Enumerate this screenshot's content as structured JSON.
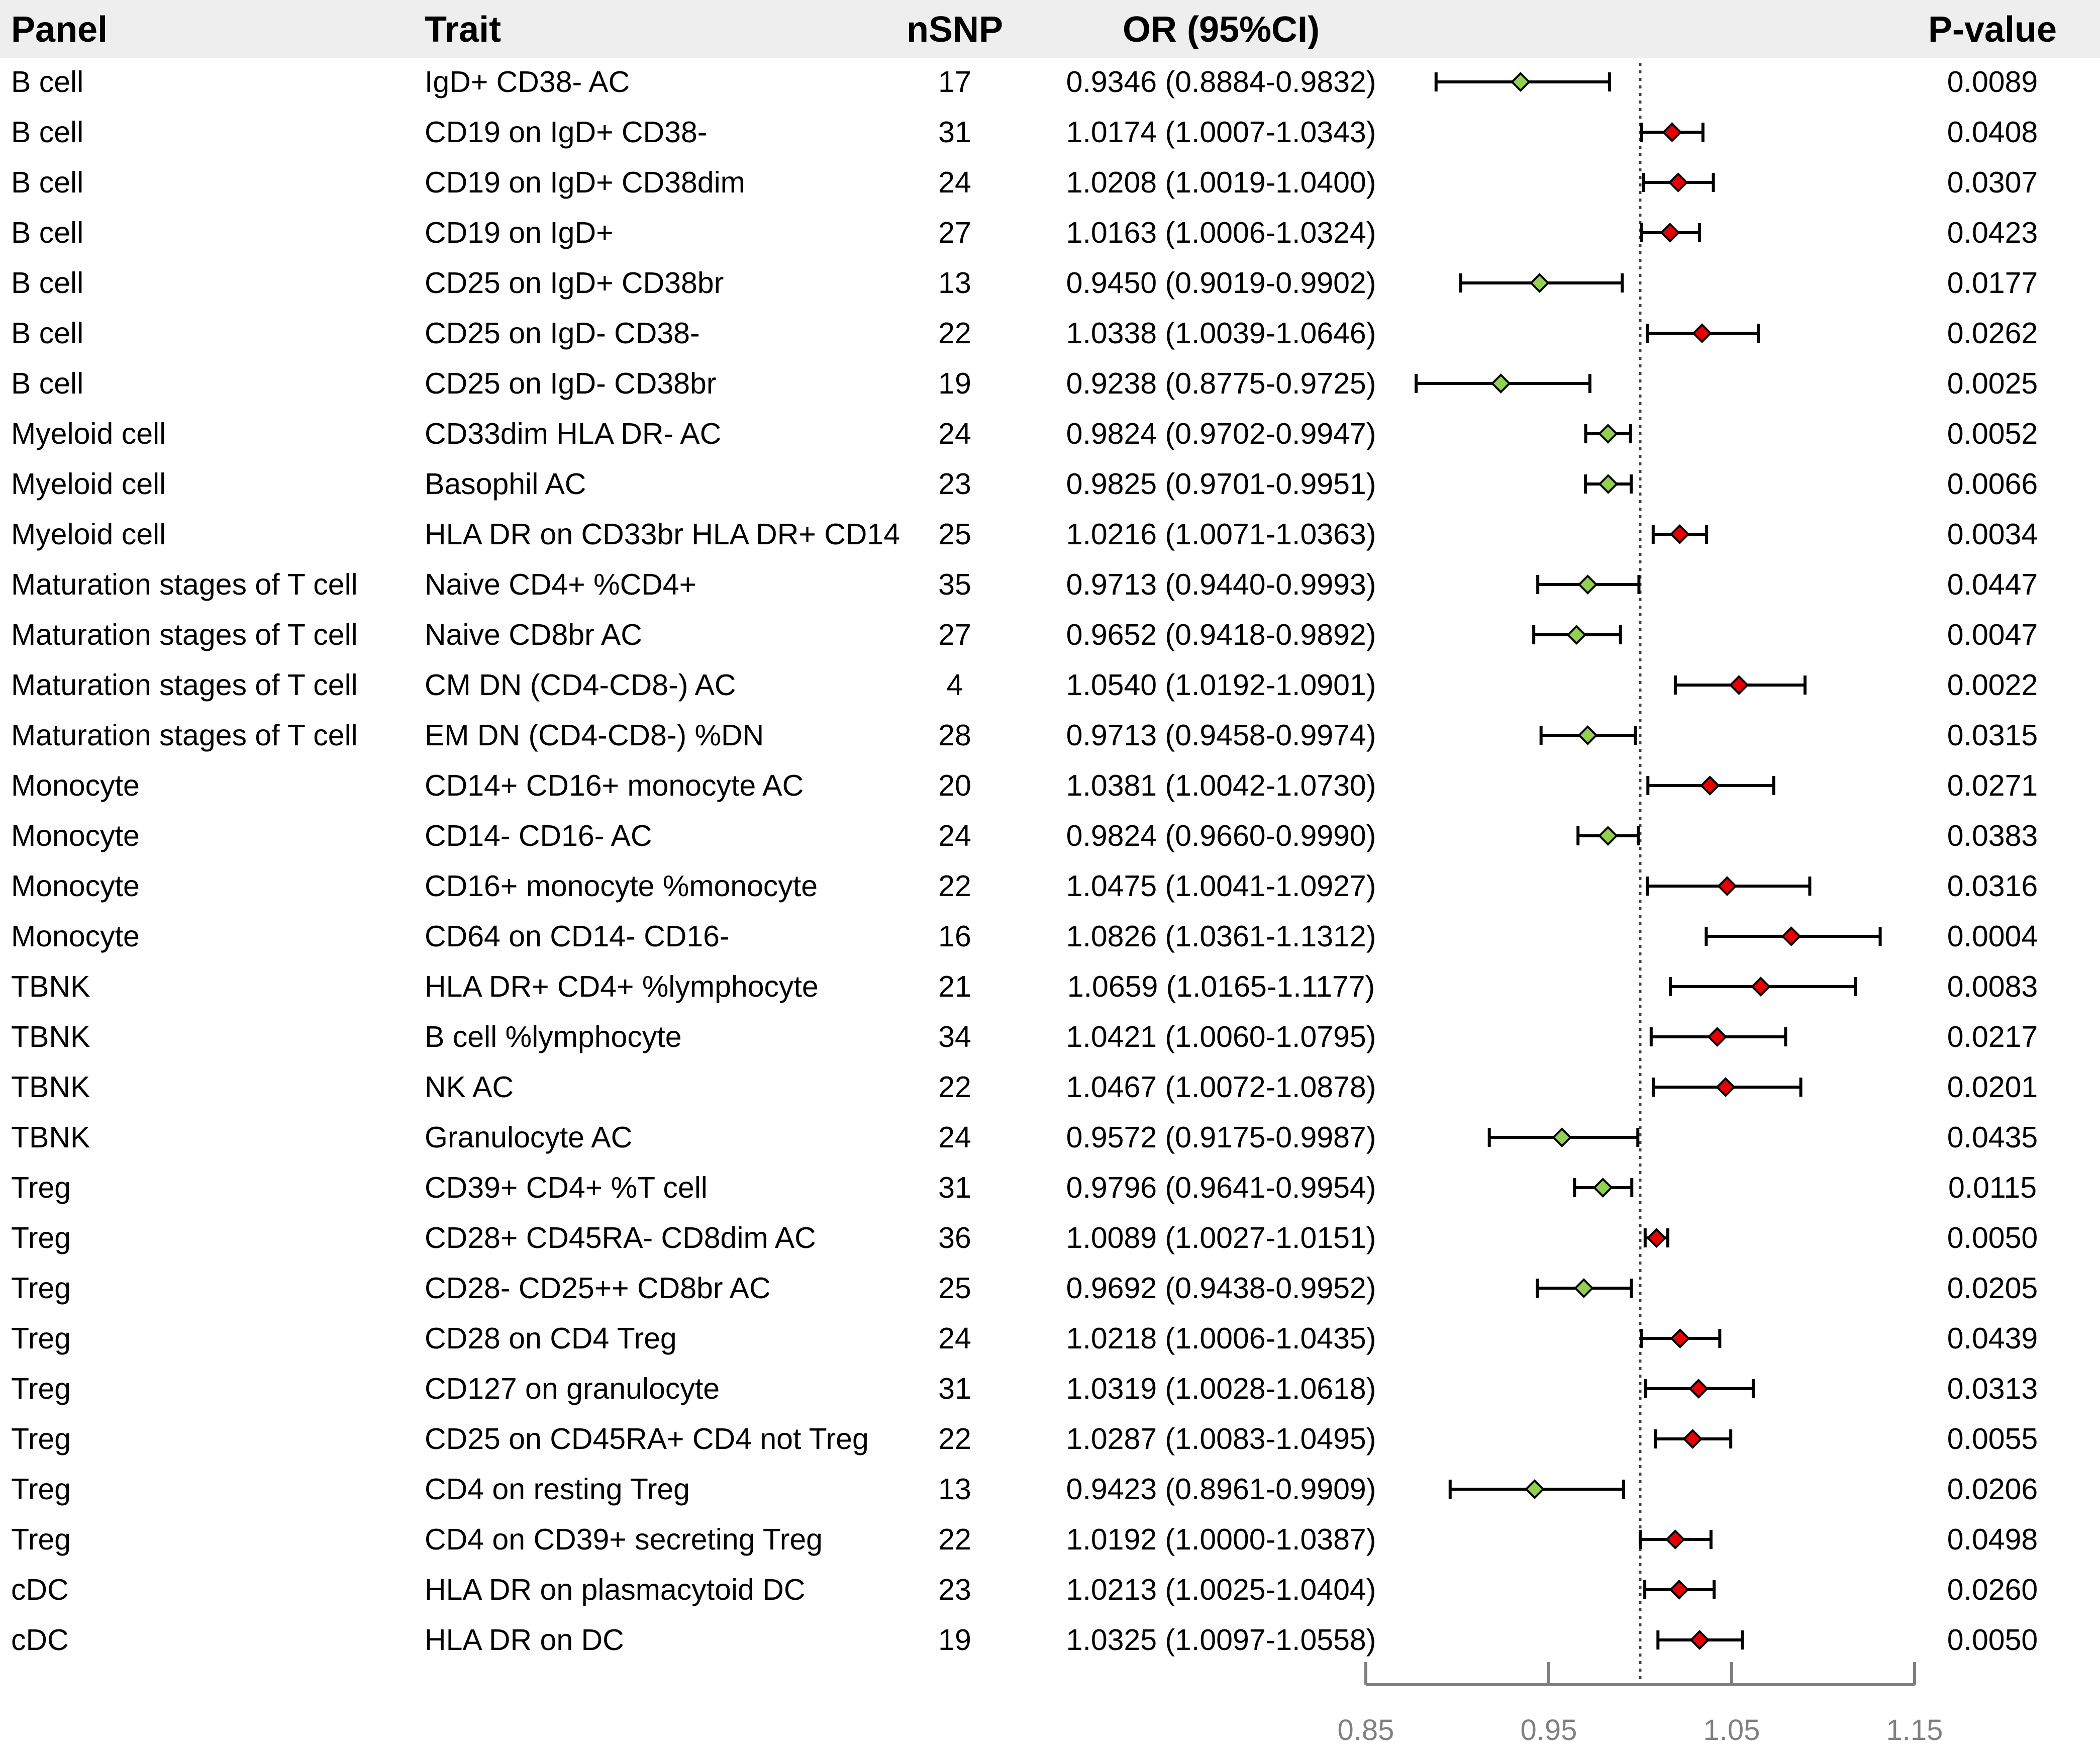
{
  "headers": {
    "panel": "Panel",
    "trait": "Trait",
    "nsnp": "nSNP",
    "or": "OR (95%CI)",
    "pvalue": "P-value"
  },
  "colors": {
    "header_band": "#eeeeee",
    "protective_marker": "#92d050",
    "risk_marker": "#e60000",
    "whisker": "#000000",
    "axis": "#7f7f7f",
    "reference_line": "#404040"
  },
  "rows": [
    {
      "panel": "B cell",
      "trait": "IgD+ CD38- AC",
      "nsnp": "17",
      "or_text": "0.9346 (0.8884-0.9832)",
      "pvalue": "0.0089"
    },
    {
      "panel": "B cell",
      "trait": "CD19 on IgD+ CD38-",
      "nsnp": "31",
      "or_text": "1.0174 (1.0007-1.0343)",
      "pvalue": "0.0408"
    },
    {
      "panel": "B cell",
      "trait": "CD19 on IgD+ CD38dim",
      "nsnp": "24",
      "or_text": "1.0208 (1.0019-1.0400)",
      "pvalue": "0.0307"
    },
    {
      "panel": "B cell",
      "trait": "CD19 on IgD+",
      "nsnp": "27",
      "or_text": "1.0163 (1.0006-1.0324)",
      "pvalue": "0.0423"
    },
    {
      "panel": "B cell",
      "trait": "CD25 on IgD+ CD38br",
      "nsnp": "13",
      "or_text": "0.9450 (0.9019-0.9902)",
      "pvalue": "0.0177"
    },
    {
      "panel": "B cell",
      "trait": "CD25 on IgD- CD38-",
      "nsnp": "22",
      "or_text": "1.0338 (1.0039-1.0646)",
      "pvalue": "0.0262"
    },
    {
      "panel": "B cell",
      "trait": "CD25 on IgD- CD38br",
      "nsnp": "19",
      "or_text": "0.9238 (0.8775-0.9725)",
      "pvalue": "0.0025"
    },
    {
      "panel": "Myeloid cell",
      "trait": "CD33dim HLA DR- AC",
      "nsnp": "24",
      "or_text": "0.9824 (0.9702-0.9947)",
      "pvalue": "0.0052"
    },
    {
      "panel": "Myeloid cell",
      "trait": "Basophil AC",
      "nsnp": "23",
      "or_text": "0.9825 (0.9701-0.9951)",
      "pvalue": "0.0066"
    },
    {
      "panel": "Myeloid cell",
      "trait": "HLA DR on CD33br HLA DR+ CD14",
      "nsnp": "25",
      "or_text": "1.0216 (1.0071-1.0363)",
      "pvalue": "0.0034"
    },
    {
      "panel": "Maturation stages of T cell",
      "trait": "Naive CD4+ %CD4+",
      "nsnp": "35",
      "or_text": "0.9713 (0.9440-0.9993)",
      "pvalue": "0.0447"
    },
    {
      "panel": "Maturation stages of T cell",
      "trait": "Naive CD8br AC",
      "nsnp": "27",
      "or_text": "0.9652 (0.9418-0.9892)",
      "pvalue": "0.0047"
    },
    {
      "panel": "Maturation stages of T cell",
      "trait": "CM DN (CD4-CD8-) AC",
      "nsnp": "4",
      "or_text": "1.0540 (1.0192-1.0901)",
      "pvalue": "0.0022"
    },
    {
      "panel": "Maturation stages of T cell",
      "trait": "EM DN (CD4-CD8-) %DN",
      "nsnp": "28",
      "or_text": "0.9713 (0.9458-0.9974)",
      "pvalue": "0.0315"
    },
    {
      "panel": "Monocyte",
      "trait": "CD14+ CD16+ monocyte AC",
      "nsnp": "20",
      "or_text": "1.0381 (1.0042-1.0730)",
      "pvalue": "0.0271"
    },
    {
      "panel": "Monocyte",
      "trait": "CD14- CD16- AC",
      "nsnp": "24",
      "or_text": "0.9824 (0.9660-0.9990)",
      "pvalue": "0.0383"
    },
    {
      "panel": "Monocyte",
      "trait": "CD16+ monocyte %monocyte",
      "nsnp": "22",
      "or_text": "1.0475 (1.0041-1.0927)",
      "pvalue": "0.0316"
    },
    {
      "panel": "Monocyte",
      "trait": "CD64 on CD14- CD16-",
      "nsnp": "16",
      "or_text": "1.0826 (1.0361-1.1312)",
      "pvalue": "0.0004"
    },
    {
      "panel": "TBNK",
      "trait": "HLA DR+ CD4+ %lymphocyte",
      "nsnp": "21",
      "or_text": "1.0659 (1.0165-1.1177)",
      "pvalue": "0.0083"
    },
    {
      "panel": "TBNK",
      "trait": "B cell %lymphocyte",
      "nsnp": "34",
      "or_text": "1.0421 (1.0060-1.0795)",
      "pvalue": "0.0217"
    },
    {
      "panel": "TBNK",
      "trait": "NK AC",
      "nsnp": "22",
      "or_text": "1.0467 (1.0072-1.0878)",
      "pvalue": "0.0201"
    },
    {
      "panel": "TBNK",
      "trait": "Granulocyte AC",
      "nsnp": "24",
      "or_text": "0.9572 (0.9175-0.9987)",
      "pvalue": "0.0435"
    },
    {
      "panel": "Treg",
      "trait": "CD39+ CD4+ %T cell",
      "nsnp": "31",
      "or_text": "0.9796 (0.9641-0.9954)",
      "pvalue": "0.0115"
    },
    {
      "panel": "Treg",
      "trait": "CD28+ CD45RA- CD8dim AC",
      "nsnp": "36",
      "or_text": "1.0089 (1.0027-1.0151)",
      "pvalue": "0.0050"
    },
    {
      "panel": "Treg",
      "trait": "CD28- CD25++ CD8br AC",
      "nsnp": "25",
      "or_text": "0.9692 (0.9438-0.9952)",
      "pvalue": "0.0205"
    },
    {
      "panel": "Treg",
      "trait": "CD28 on CD4 Treg",
      "nsnp": "24",
      "or_text": "1.0218 (1.0006-1.0435)",
      "pvalue": "0.0439"
    },
    {
      "panel": "Treg",
      "trait": "CD127 on granulocyte",
      "nsnp": "31",
      "or_text": "1.0319 (1.0028-1.0618)",
      "pvalue": "0.0313"
    },
    {
      "panel": "Treg",
      "trait": "CD25 on CD45RA+ CD4 not Treg",
      "nsnp": "22",
      "or_text": "1.0287 (1.0083-1.0495)",
      "pvalue": "0.0055"
    },
    {
      "panel": "Treg",
      "trait": "CD4 on resting Treg",
      "nsnp": "13",
      "or_text": "0.9423 (0.8961-0.9909)",
      "pvalue": "0.0206"
    },
    {
      "panel": "Treg",
      "trait": "CD4 on CD39+ secreting Treg",
      "nsnp": "22",
      "or_text": "1.0192 (1.0000-1.0387)",
      "pvalue": "0.0498"
    },
    {
      "panel": "cDC",
      "trait": "HLA DR on plasmacytoid DC",
      "nsnp": "23",
      "or_text": "1.0213 (1.0025-1.0404)",
      "pvalue": "0.0260"
    },
    {
      "panel": "cDC",
      "trait": "HLA DR on DC",
      "nsnp": "19",
      "or_text": "1.0325 (1.0097-1.0558)",
      "pvalue": "0.0050"
    }
  ],
  "chart_data": {
    "type": "forest",
    "xlim": [
      0.85,
      1.15
    ],
    "xticks": [
      0.85,
      0.95,
      1.05,
      1.15
    ],
    "xtick_labels": [
      "0.85",
      "0.95",
      "1.05",
      "1.15"
    ],
    "reference_line": 1.0,
    "points": [
      {
        "or": 0.9346,
        "lo": 0.8884,
        "hi": 0.9832
      },
      {
        "or": 1.0174,
        "lo": 1.0007,
        "hi": 1.0343
      },
      {
        "or": 1.0208,
        "lo": 1.0019,
        "hi": 1.04
      },
      {
        "or": 1.0163,
        "lo": 1.0006,
        "hi": 1.0324
      },
      {
        "or": 0.945,
        "lo": 0.9019,
        "hi": 0.9902
      },
      {
        "or": 1.0338,
        "lo": 1.0039,
        "hi": 1.0646
      },
      {
        "or": 0.9238,
        "lo": 0.8775,
        "hi": 0.9725
      },
      {
        "or": 0.9824,
        "lo": 0.9702,
        "hi": 0.9947
      },
      {
        "or": 0.9825,
        "lo": 0.9701,
        "hi": 0.9951
      },
      {
        "or": 1.0216,
        "lo": 1.0071,
        "hi": 1.0363
      },
      {
        "or": 0.9713,
        "lo": 0.944,
        "hi": 0.9993
      },
      {
        "or": 0.9652,
        "lo": 0.9418,
        "hi": 0.9892
      },
      {
        "or": 1.054,
        "lo": 1.0192,
        "hi": 1.0901
      },
      {
        "or": 0.9713,
        "lo": 0.9458,
        "hi": 0.9974
      },
      {
        "or": 1.0381,
        "lo": 1.0042,
        "hi": 1.073
      },
      {
        "or": 0.9824,
        "lo": 0.966,
        "hi": 0.999
      },
      {
        "or": 1.0475,
        "lo": 1.0041,
        "hi": 1.0927
      },
      {
        "or": 1.0826,
        "lo": 1.0361,
        "hi": 1.1312
      },
      {
        "or": 1.0659,
        "lo": 1.0165,
        "hi": 1.1177
      },
      {
        "or": 1.0421,
        "lo": 1.006,
        "hi": 1.0795
      },
      {
        "or": 1.0467,
        "lo": 1.0072,
        "hi": 1.0878
      },
      {
        "or": 0.9572,
        "lo": 0.9175,
        "hi": 0.9987
      },
      {
        "or": 0.9796,
        "lo": 0.9641,
        "hi": 0.9954
      },
      {
        "or": 1.0089,
        "lo": 1.0027,
        "hi": 1.0151
      },
      {
        "or": 0.9692,
        "lo": 0.9438,
        "hi": 0.9952
      },
      {
        "or": 1.0218,
        "lo": 1.0006,
        "hi": 1.0435
      },
      {
        "or": 1.0319,
        "lo": 1.0028,
        "hi": 1.0618
      },
      {
        "or": 1.0287,
        "lo": 1.0083,
        "hi": 1.0495
      },
      {
        "or": 0.9423,
        "lo": 0.8961,
        "hi": 0.9909
      },
      {
        "or": 1.0192,
        "lo": 1.0,
        "hi": 1.0387
      },
      {
        "or": 1.0213,
        "lo": 1.0025,
        "hi": 1.0404
      },
      {
        "or": 1.0325,
        "lo": 1.0097,
        "hi": 1.0558
      }
    ]
  }
}
